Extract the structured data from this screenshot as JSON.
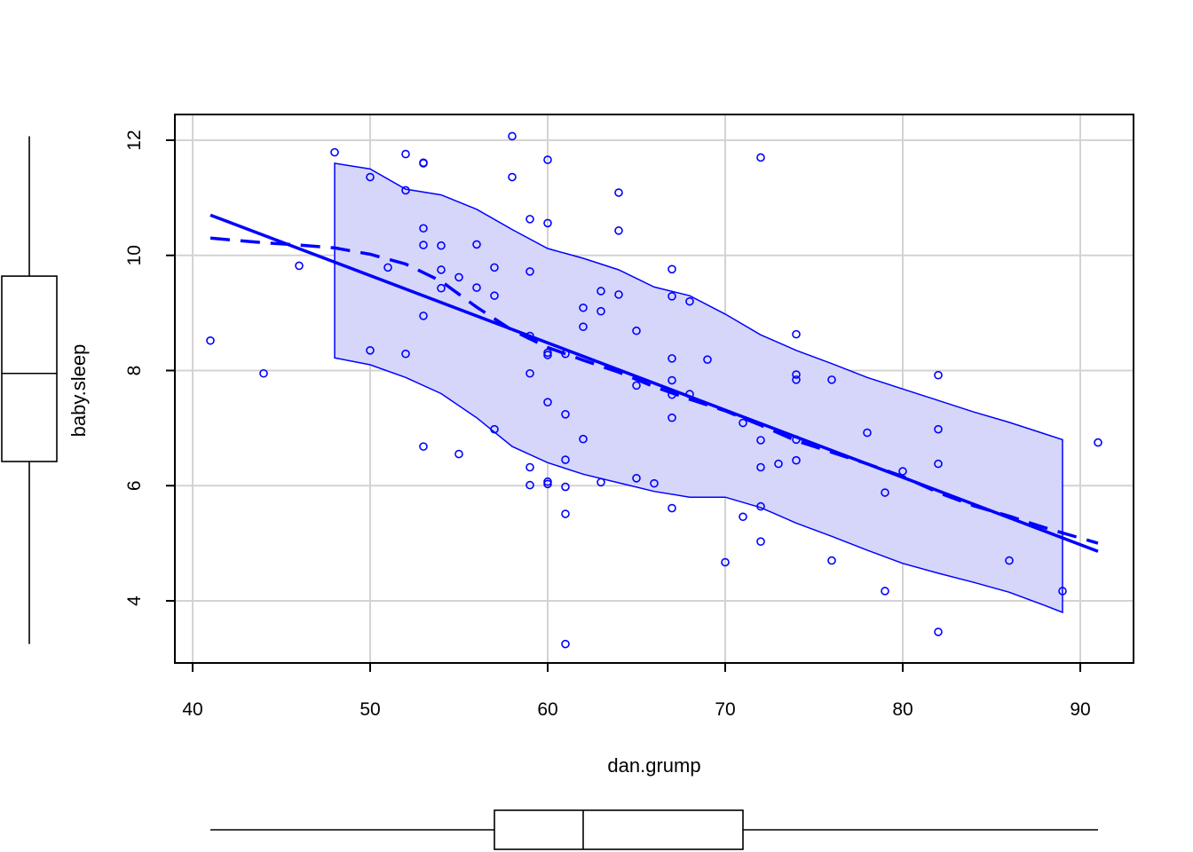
{
  "chart_data": {
    "type": "scatter",
    "title": "",
    "xlabel": "dan.grump",
    "ylabel": "baby.sleep",
    "xlim": [
      40,
      91
    ],
    "ylim": [
      3.2,
      12.2
    ],
    "x_ticks": [
      40,
      50,
      60,
      70,
      80,
      90
    ],
    "y_ticks": [
      4,
      6,
      8,
      10,
      12
    ],
    "x_tick_labels": [
      "40",
      "50",
      "60",
      "70",
      "80",
      "90"
    ],
    "y_tick_labels": [
      "4",
      "6",
      "8",
      "10",
      "12"
    ],
    "grid": true,
    "colors": {
      "series": "#0000ff",
      "band_fill": "#d6d6fb",
      "grid": "#d3d3d3",
      "axis": "#000000"
    },
    "points": [
      [
        41,
        8.52
      ],
      [
        44,
        7.95
      ],
      [
        46,
        9.82
      ],
      [
        48,
        11.79
      ],
      [
        50,
        11.36
      ],
      [
        50,
        8.35
      ],
      [
        51,
        9.79
      ],
      [
        52,
        11.76
      ],
      [
        52,
        11.13
      ],
      [
        52,
        8.29
      ],
      [
        53,
        11.61
      ],
      [
        53,
        11.6
      ],
      [
        53,
        10.47
      ],
      [
        53,
        10.18
      ],
      [
        53,
        8.95
      ],
      [
        53,
        6.68
      ],
      [
        54,
        10.17
      ],
      [
        54,
        9.75
      ],
      [
        54,
        9.43
      ],
      [
        55,
        9.62
      ],
      [
        55,
        6.55
      ],
      [
        56,
        10.19
      ],
      [
        56,
        9.44
      ],
      [
        57,
        9.79
      ],
      [
        57,
        9.3
      ],
      [
        57,
        6.98
      ],
      [
        58,
        12.07
      ],
      [
        58,
        11.36
      ],
      [
        59,
        10.63
      ],
      [
        59,
        9.72
      ],
      [
        59,
        8.6
      ],
      [
        59,
        7.95
      ],
      [
        59,
        6.32
      ],
      [
        59,
        6.01
      ],
      [
        60,
        11.66
      ],
      [
        60,
        10.56
      ],
      [
        60,
        8.31
      ],
      [
        60,
        8.27
      ],
      [
        60,
        7.45
      ],
      [
        60,
        6.07
      ],
      [
        60,
        6.03
      ],
      [
        61,
        8.29
      ],
      [
        61,
        7.24
      ],
      [
        61,
        6.45
      ],
      [
        61,
        5.98
      ],
      [
        61,
        5.51
      ],
      [
        61,
        3.25
      ],
      [
        62,
        9.09
      ],
      [
        62,
        8.76
      ],
      [
        62,
        6.81
      ],
      [
        63,
        9.38
      ],
      [
        63,
        9.03
      ],
      [
        63,
        6.06
      ],
      [
        64,
        11.09
      ],
      [
        64,
        10.43
      ],
      [
        64,
        9.32
      ],
      [
        65,
        8.69
      ],
      [
        65,
        7.74
      ],
      [
        65,
        6.13
      ],
      [
        66,
        6.04
      ],
      [
        67,
        9.76
      ],
      [
        67,
        9.29
      ],
      [
        67,
        8.21
      ],
      [
        67,
        7.83
      ],
      [
        67,
        7.58
      ],
      [
        67,
        7.18
      ],
      [
        67,
        5.61
      ],
      [
        68,
        9.2
      ],
      [
        68,
        7.59
      ],
      [
        69,
        8.19
      ],
      [
        70,
        4.67
      ],
      [
        71,
        7.09
      ],
      [
        71,
        5.46
      ],
      [
        72,
        11.7
      ],
      [
        72,
        6.79
      ],
      [
        72,
        6.32
      ],
      [
        72,
        5.64
      ],
      [
        72,
        5.03
      ],
      [
        73,
        6.38
      ],
      [
        74,
        8.63
      ],
      [
        74,
        7.93
      ],
      [
        74,
        7.84
      ],
      [
        74,
        6.8
      ],
      [
        74,
        6.44
      ],
      [
        76,
        7.84
      ],
      [
        76,
        4.7
      ],
      [
        78,
        6.92
      ],
      [
        79,
        5.88
      ],
      [
        79,
        4.17
      ],
      [
        80,
        6.25
      ],
      [
        82,
        7.92
      ],
      [
        82,
        6.98
      ],
      [
        82,
        6.38
      ],
      [
        82,
        3.46
      ],
      [
        86,
        4.7
      ],
      [
        89,
        4.17
      ],
      [
        91,
        6.75
      ]
    ],
    "regression_line": [
      [
        41,
        10.7
      ],
      [
        91,
        4.86
      ]
    ],
    "smooth_line": [
      [
        41,
        10.3
      ],
      [
        44,
        10.22
      ],
      [
        46,
        10.18
      ],
      [
        48,
        10.13
      ],
      [
        50,
        10.02
      ],
      [
        52,
        9.85
      ],
      [
        54,
        9.55
      ],
      [
        56,
        9.1
      ],
      [
        58,
        8.7
      ],
      [
        60,
        8.4
      ],
      [
        62,
        8.18
      ],
      [
        64,
        7.97
      ],
      [
        66,
        7.72
      ],
      [
        68,
        7.5
      ],
      [
        70,
        7.3
      ],
      [
        72,
        7.05
      ],
      [
        74,
        6.78
      ],
      [
        76,
        6.58
      ],
      [
        78,
        6.38
      ],
      [
        80,
        6.16
      ],
      [
        82,
        5.88
      ],
      [
        84,
        5.65
      ],
      [
        86,
        5.47
      ],
      [
        88,
        5.27
      ],
      [
        91,
        5.0
      ]
    ],
    "spread_upper": [
      [
        48,
        11.6
      ],
      [
        50,
        11.5
      ],
      [
        52,
        11.15
      ],
      [
        54,
        11.05
      ],
      [
        56,
        10.8
      ],
      [
        58,
        10.45
      ],
      [
        60,
        10.12
      ],
      [
        62,
        9.95
      ],
      [
        64,
        9.75
      ],
      [
        66,
        9.45
      ],
      [
        68,
        9.3
      ],
      [
        70,
        8.98
      ],
      [
        72,
        8.62
      ],
      [
        74,
        8.35
      ],
      [
        76,
        8.12
      ],
      [
        78,
        7.88
      ],
      [
        80,
        7.68
      ],
      [
        82,
        7.48
      ],
      [
        84,
        7.28
      ],
      [
        86,
        7.1
      ],
      [
        88,
        6.9
      ],
      [
        89,
        6.8
      ]
    ],
    "spread_lower": [
      [
        48,
        8.22
      ],
      [
        50,
        8.1
      ],
      [
        52,
        7.88
      ],
      [
        54,
        7.6
      ],
      [
        56,
        7.18
      ],
      [
        58,
        6.68
      ],
      [
        60,
        6.4
      ],
      [
        62,
        6.2
      ],
      [
        64,
        6.05
      ],
      [
        66,
        5.9
      ],
      [
        68,
        5.8
      ],
      [
        70,
        5.8
      ],
      [
        72,
        5.62
      ],
      [
        74,
        5.35
      ],
      [
        76,
        5.12
      ],
      [
        78,
        4.88
      ],
      [
        80,
        4.65
      ],
      [
        82,
        4.48
      ],
      [
        84,
        4.32
      ],
      [
        86,
        4.15
      ],
      [
        88,
        3.92
      ],
      [
        89,
        3.8
      ]
    ],
    "x_boxplot": {
      "min": 41,
      "q1": 57,
      "median": 62,
      "q3": 71,
      "max": 91
    },
    "y_boxplot": {
      "min": 3.25,
      "q1": 6.42,
      "median": 7.95,
      "q3": 9.64,
      "max": 12.07
    }
  }
}
